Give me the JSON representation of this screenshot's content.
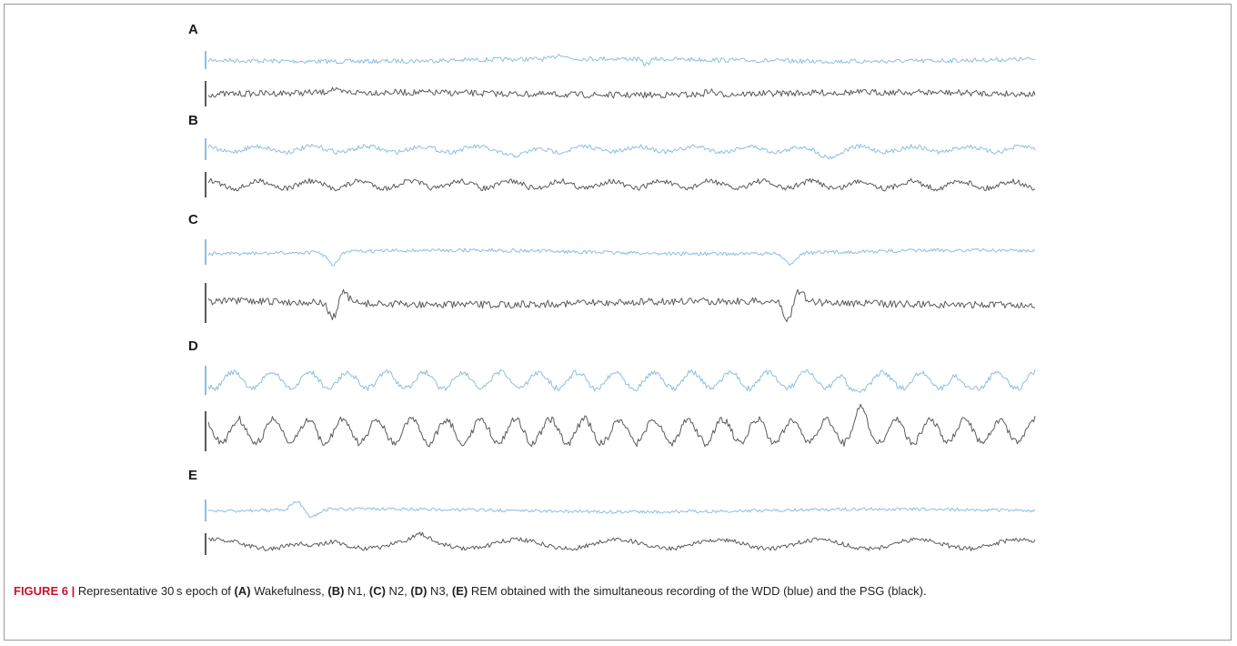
{
  "figure": {
    "panels": [
      {
        "letter": "A",
        "stage": "Wakefulness"
      },
      {
        "letter": "B",
        "stage": "N1"
      },
      {
        "letter": "C",
        "stage": "N2"
      },
      {
        "letter": "D",
        "stage": "N3"
      },
      {
        "letter": "E",
        "stage": "REM"
      }
    ],
    "colors": {
      "wdd": "#8cbfe3",
      "psg": "#5a5a5a",
      "caption_label": "#c8102e"
    }
  },
  "caption": {
    "label": "FIGURE 6 |",
    "intro": " Representative 30 s epoch of ",
    "items": [
      {
        "tag": "(A)",
        "text": " Wakefulness, "
      },
      {
        "tag": "(B)",
        "text": " N1, "
      },
      {
        "tag": "(C)",
        "text": " N2, "
      },
      {
        "tag": "(D)",
        "text": " N3, "
      },
      {
        "tag": "(E)",
        "text": " REM obtained with the simultaneous recording of the WDD (blue) and the PSG (black)."
      }
    ]
  }
}
